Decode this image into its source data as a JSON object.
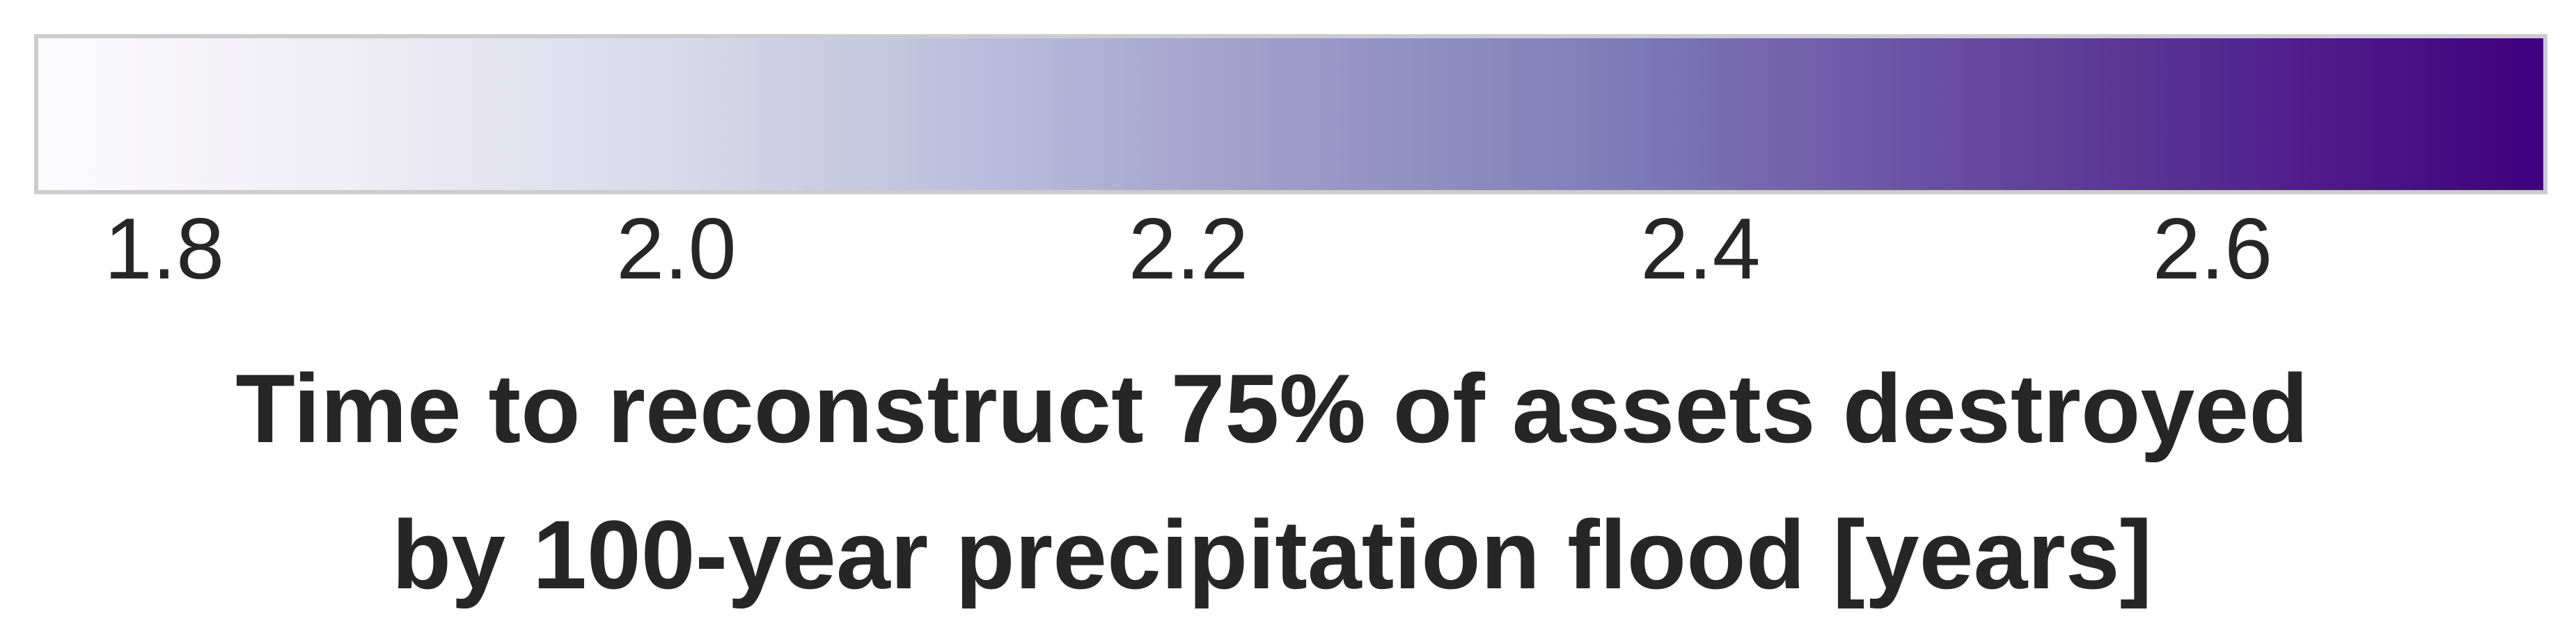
{
  "chart_data": {
    "type": "colorbar",
    "orientation": "horizontal",
    "colormap": "Purples",
    "vmin": 1.75,
    "vmax": 2.73,
    "ticks": [
      1.8,
      2.0,
      2.2,
      2.4,
      2.6
    ],
    "tick_labels": [
      "1.8",
      "2.0",
      "2.2",
      "2.4",
      "2.6"
    ],
    "label_lines": [
      "Time to reconstruct 75% of assets destroyed",
      "by 100-year precipitation flood [years]"
    ],
    "colors": {
      "stops": [
        {
          "value": 0.0,
          "color": "#fcfbfd"
        },
        {
          "value": 0.125,
          "color": "#efedf5"
        },
        {
          "value": 0.25,
          "color": "#dadaeb"
        },
        {
          "value": 0.375,
          "color": "#bcbddc"
        },
        {
          "value": 0.5,
          "color": "#9e9ac8"
        },
        {
          "value": 0.625,
          "color": "#807dba"
        },
        {
          "value": 0.75,
          "color": "#6a51a3"
        },
        {
          "value": 0.875,
          "color": "#54278f"
        },
        {
          "value": 1.0,
          "color": "#3f007d"
        }
      ],
      "frame": "#cccccc",
      "text": "#262626"
    }
  }
}
